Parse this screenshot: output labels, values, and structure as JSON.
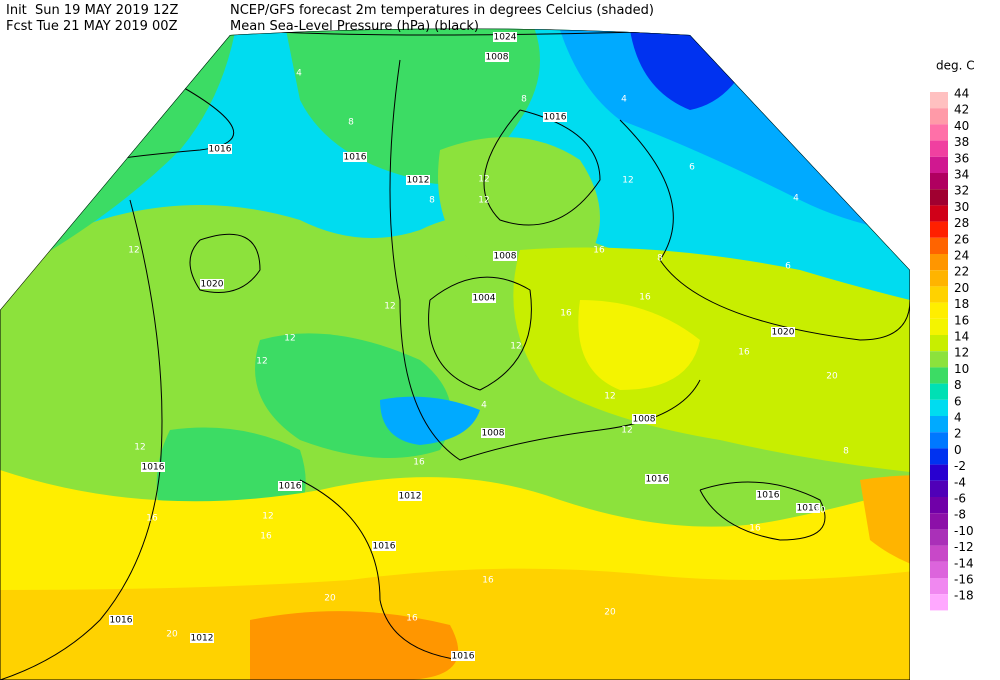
{
  "header": {
    "init": "Init  Sun 19 MAY 2019 12Z",
    "fcst": "Fcst Tue 21 MAY 2019 00Z",
    "title": "NCEP/GFS forecast 2m temperatures in degrees Celcius (shaded)",
    "subtitle": "Mean Sea-Level Pressure (hPa) (black)"
  },
  "legend": {
    "title": "deg. C",
    "levels": [
      {
        "value": 44,
        "color": "#ffc0c0"
      },
      {
        "value": 42,
        "color": "#ff9aa8"
      },
      {
        "value": 40,
        "color": "#ff70a8"
      },
      {
        "value": 38,
        "color": "#f040a0"
      },
      {
        "value": 36,
        "color": "#d01890"
      },
      {
        "value": 34,
        "color": "#b00060"
      },
      {
        "value": 32,
        "color": "#a00030"
      },
      {
        "value": 30,
        "color": "#d00018"
      },
      {
        "value": 28,
        "color": "#ff2000"
      },
      {
        "value": 26,
        "color": "#ff6400"
      },
      {
        "value": 24,
        "color": "#ff9600"
      },
      {
        "value": 22,
        "color": "#ffb400"
      },
      {
        "value": 20,
        "color": "#ffd200"
      },
      {
        "value": 18,
        "color": "#ffee00"
      },
      {
        "value": 16,
        "color": "#f4f400"
      },
      {
        "value": 14,
        "color": "#c8ee00"
      },
      {
        "value": 12,
        "color": "#8ce23c"
      },
      {
        "value": 10,
        "color": "#3cdc64"
      },
      {
        "value": 8,
        "color": "#00e0b4"
      },
      {
        "value": 6,
        "color": "#00dcf0"
      },
      {
        "value": 4,
        "color": "#00aaff"
      },
      {
        "value": 2,
        "color": "#0078ff"
      },
      {
        "value": 0,
        "color": "#0032f0"
      },
      {
        "value": -2,
        "color": "#2800d0"
      },
      {
        "value": -4,
        "color": "#5000b8"
      },
      {
        "value": -6,
        "color": "#7000a8"
      },
      {
        "value": -8,
        "color": "#8c10a8"
      },
      {
        "value": -10,
        "color": "#aa30b8"
      },
      {
        "value": -12,
        "color": "#c848c8"
      },
      {
        "value": -14,
        "color": "#dc64dc"
      },
      {
        "value": -16,
        "color": "#f088f0"
      },
      {
        "value": -18,
        "color": "#ffa8ff"
      }
    ]
  },
  "isobar_labels": [
    "1024",
    "1008",
    "1016",
    "1016",
    "1016",
    "1012",
    "1008",
    "1004",
    "1020",
    "1020",
    "1008",
    "1008",
    "1016",
    "1016",
    "1012",
    "1016",
    "1016",
    "1016",
    "1016",
    "1016",
    "1012",
    "1016"
  ],
  "temperature_labels": [
    "4",
    "8",
    "8",
    "4",
    "12",
    "12",
    "8",
    "6",
    "12",
    "4",
    "12",
    "16",
    "8",
    "6",
    "12",
    "16",
    "12",
    "16",
    "12",
    "12",
    "16",
    "12",
    "4",
    "12",
    "16",
    "12",
    "16",
    "12",
    "16",
    "20",
    "16",
    "20",
    "16",
    "20",
    "16",
    "20",
    "20",
    "8"
  ]
}
